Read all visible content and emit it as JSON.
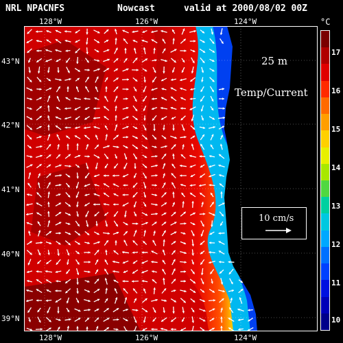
{
  "header": {
    "model": "NRL NPACNFS",
    "kind": "Nowcast",
    "valid": "valid at 2000/08/02 00Z"
  },
  "map": {
    "depth_label": "25 m",
    "field_label": "Temp/Current",
    "scale_label": "10 cm/s",
    "longitude_labels": [
      "128°W",
      "126°W",
      "124°W"
    ],
    "latitude_labels": [
      "43°N",
      "42°N",
      "41°N",
      "40°N",
      "39°N"
    ],
    "land_color": "#000000",
    "vector_color": "#ffffff"
  },
  "colorbar": {
    "unit": "°C",
    "ticks": [
      "17",
      "16",
      "15",
      "14",
      "13",
      "12",
      "11",
      "10"
    ],
    "colors": [
      "#7a0000",
      "#b00000",
      "#e00000",
      "#ff2a00",
      "#ff6a00",
      "#ff9e00",
      "#ffd000",
      "#e8f000",
      "#a8e800",
      "#50d840",
      "#00d0a0",
      "#00c8e0",
      "#00a8ff",
      "#0070ff",
      "#0040ff",
      "#0010e0",
      "#0000b8",
      "#00008a"
    ]
  }
}
